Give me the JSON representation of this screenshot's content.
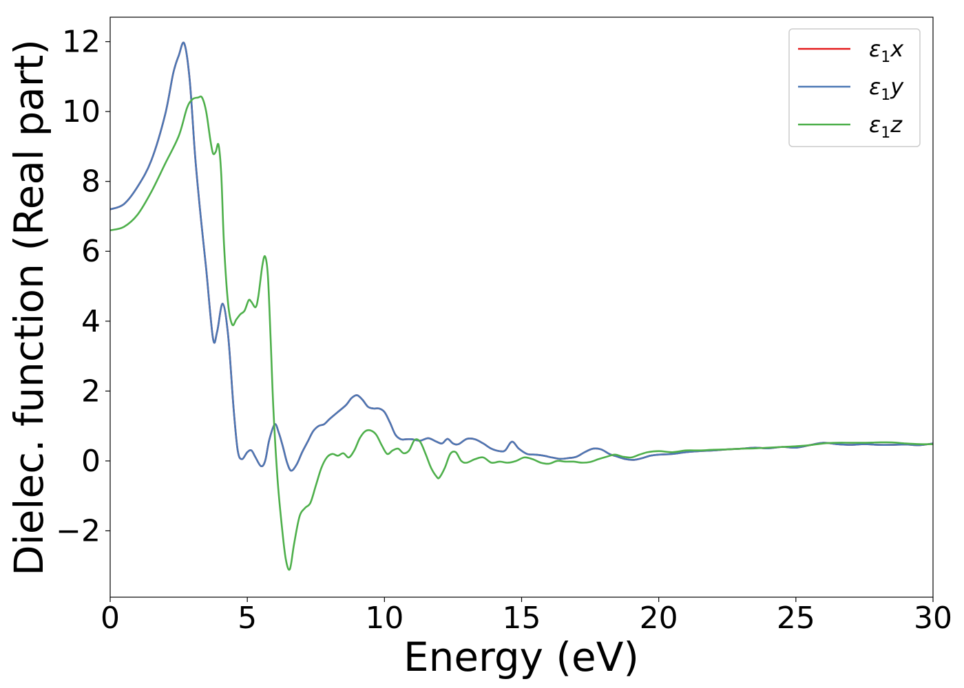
{
  "chart_data": {
    "type": "line",
    "xlabel": "Energy (eV)",
    "ylabel": "Dielec. function (Real part)",
    "xlim": [
      0,
      30
    ],
    "ylim": [
      -3.9,
      12.7
    ],
    "xticks": [
      0,
      5,
      10,
      15,
      20,
      25,
      30
    ],
    "xtick_labels": [
      "0",
      "5",
      "10",
      "15",
      "20",
      "25",
      "30"
    ],
    "yticks": [
      -2,
      0,
      2,
      4,
      6,
      8,
      10,
      12
    ],
    "ytick_labels": [
      "−2",
      "0",
      "2",
      "4",
      "6",
      "8",
      "10",
      "12"
    ],
    "grid": false,
    "legend_position": "top-right",
    "series": [
      {
        "name": "ε₁x",
        "legend_base": "ε",
        "legend_sub": "1",
        "legend_var": "x",
        "color": "#e41a1c",
        "x": [
          0,
          0.5,
          1.0,
          1.5,
          2.0,
          2.3,
          2.5,
          2.7,
          2.9,
          3.1,
          3.3,
          3.5,
          3.75,
          3.9,
          4.1,
          4.3,
          4.5,
          4.65,
          4.8,
          5.0,
          5.15,
          5.3,
          5.5,
          5.65,
          5.8,
          6.0,
          6.15,
          6.3,
          6.45,
          6.6,
          6.8,
          7.0,
          7.2,
          7.4,
          7.6,
          7.8,
          8.0,
          8.3,
          8.6,
          8.8,
          9.0,
          9.2,
          9.4,
          9.6,
          9.8,
          10.0,
          10.2,
          10.4,
          10.6,
          10.8,
          11.0,
          11.3,
          11.6,
          11.9,
          12.1,
          12.3,
          12.5,
          12.7,
          13.0,
          13.3,
          13.6,
          13.9,
          14.2,
          14.4,
          14.65,
          14.9,
          15.2,
          15.5,
          15.8,
          16.1,
          16.4,
          16.7,
          17.0,
          17.3,
          17.6,
          17.9,
          18.2,
          18.5,
          18.8,
          19.1,
          19.4,
          19.7,
          20.0,
          20.5,
          21.0,
          21.5,
          22.0,
          22.5,
          23.0,
          23.5,
          24.0,
          24.5,
          25.0,
          25.5,
          26.0,
          26.5,
          27.0,
          27.5,
          28.0,
          28.5,
          29.0,
          29.5,
          30.0
        ],
        "y": [
          7.2,
          7.35,
          7.85,
          8.6,
          9.9,
          11.1,
          11.6,
          11.95,
          10.9,
          8.7,
          7.0,
          5.5,
          3.5,
          3.7,
          4.5,
          3.6,
          1.5,
          0.3,
          0.05,
          0.25,
          0.3,
          0.1,
          -0.15,
          0.0,
          0.6,
          1.05,
          0.8,
          0.4,
          -0.05,
          -0.28,
          -0.1,
          0.25,
          0.55,
          0.85,
          1.0,
          1.05,
          1.2,
          1.4,
          1.6,
          1.8,
          1.88,
          1.75,
          1.55,
          1.5,
          1.5,
          1.4,
          1.1,
          0.75,
          0.62,
          0.62,
          0.62,
          0.58,
          0.65,
          0.55,
          0.5,
          0.63,
          0.5,
          0.48,
          0.63,
          0.62,
          0.5,
          0.35,
          0.28,
          0.3,
          0.55,
          0.35,
          0.2,
          0.18,
          0.15,
          0.1,
          0.06,
          0.08,
          0.12,
          0.25,
          0.35,
          0.33,
          0.2,
          0.12,
          0.05,
          0.03,
          0.08,
          0.15,
          0.18,
          0.2,
          0.25,
          0.28,
          0.3,
          0.33,
          0.35,
          0.38,
          0.36,
          0.4,
          0.38,
          0.45,
          0.52,
          0.48,
          0.46,
          0.48,
          0.46,
          0.46,
          0.47,
          0.45,
          0.5
        ]
      },
      {
        "name": "ε₁y",
        "legend_base": "ε",
        "legend_sub": "1",
        "legend_var": "y",
        "color": "#4a77b4",
        "x": [
          0,
          0.5,
          1.0,
          1.5,
          2.0,
          2.3,
          2.5,
          2.7,
          2.9,
          3.1,
          3.3,
          3.5,
          3.75,
          3.9,
          4.1,
          4.3,
          4.5,
          4.65,
          4.8,
          5.0,
          5.15,
          5.3,
          5.5,
          5.65,
          5.8,
          6.0,
          6.15,
          6.3,
          6.45,
          6.6,
          6.8,
          7.0,
          7.2,
          7.4,
          7.6,
          7.8,
          8.0,
          8.3,
          8.6,
          8.8,
          9.0,
          9.2,
          9.4,
          9.6,
          9.8,
          10.0,
          10.2,
          10.4,
          10.6,
          10.8,
          11.0,
          11.3,
          11.6,
          11.9,
          12.1,
          12.3,
          12.5,
          12.7,
          13.0,
          13.3,
          13.6,
          13.9,
          14.2,
          14.4,
          14.65,
          14.9,
          15.2,
          15.5,
          15.8,
          16.1,
          16.4,
          16.7,
          17.0,
          17.3,
          17.6,
          17.9,
          18.2,
          18.5,
          18.8,
          19.1,
          19.4,
          19.7,
          20.0,
          20.5,
          21.0,
          21.5,
          22.0,
          22.5,
          23.0,
          23.5,
          24.0,
          24.5,
          25.0,
          25.5,
          26.0,
          26.5,
          27.0,
          27.5,
          28.0,
          28.5,
          29.0,
          29.5,
          30.0
        ],
        "y": [
          7.2,
          7.35,
          7.85,
          8.6,
          9.9,
          11.1,
          11.6,
          11.95,
          10.9,
          8.7,
          7.0,
          5.5,
          3.5,
          3.7,
          4.5,
          3.6,
          1.5,
          0.3,
          0.05,
          0.25,
          0.3,
          0.1,
          -0.15,
          0.0,
          0.6,
          1.05,
          0.8,
          0.4,
          -0.05,
          -0.28,
          -0.1,
          0.25,
          0.55,
          0.85,
          1.0,
          1.05,
          1.2,
          1.4,
          1.6,
          1.8,
          1.88,
          1.75,
          1.55,
          1.5,
          1.5,
          1.4,
          1.1,
          0.75,
          0.62,
          0.62,
          0.62,
          0.58,
          0.65,
          0.55,
          0.5,
          0.63,
          0.5,
          0.48,
          0.63,
          0.62,
          0.5,
          0.35,
          0.28,
          0.3,
          0.55,
          0.35,
          0.2,
          0.18,
          0.15,
          0.1,
          0.06,
          0.08,
          0.12,
          0.25,
          0.35,
          0.33,
          0.2,
          0.12,
          0.05,
          0.03,
          0.08,
          0.15,
          0.18,
          0.2,
          0.25,
          0.28,
          0.3,
          0.33,
          0.35,
          0.38,
          0.36,
          0.4,
          0.38,
          0.45,
          0.52,
          0.48,
          0.46,
          0.48,
          0.46,
          0.46,
          0.47,
          0.45,
          0.5
        ]
      },
      {
        "name": "ε₁z",
        "legend_base": "ε",
        "legend_sub": "1",
        "legend_var": "z",
        "color": "#4daf4a",
        "x": [
          0,
          0.5,
          1.0,
          1.5,
          2.0,
          2.5,
          2.8,
          3.0,
          3.2,
          3.35,
          3.5,
          3.65,
          3.75,
          3.85,
          3.95,
          4.05,
          4.15,
          4.3,
          4.45,
          4.6,
          4.75,
          4.9,
          5.05,
          5.15,
          5.3,
          5.4,
          5.55,
          5.65,
          5.75,
          5.85,
          5.95,
          6.1,
          6.25,
          6.4,
          6.55,
          6.7,
          6.9,
          7.1,
          7.3,
          7.5,
          7.7,
          7.9,
          8.1,
          8.3,
          8.5,
          8.7,
          8.9,
          9.1,
          9.3,
          9.5,
          9.7,
          9.9,
          10.1,
          10.3,
          10.5,
          10.7,
          10.9,
          11.1,
          11.3,
          11.5,
          11.7,
          11.9,
          12.0,
          12.2,
          12.4,
          12.6,
          12.8,
          13.0,
          13.3,
          13.6,
          13.9,
          14.2,
          14.5,
          14.8,
          15.1,
          15.4,
          15.7,
          16.0,
          16.3,
          16.6,
          16.9,
          17.2,
          17.5,
          17.8,
          18.1,
          18.4,
          18.7,
          19.0,
          19.3,
          19.6,
          20.0,
          20.5,
          21.0,
          21.5,
          22.0,
          22.5,
          23.0,
          23.5,
          24.0,
          24.5,
          25.0,
          25.5,
          26.0,
          26.5,
          27.0,
          27.5,
          28.0,
          28.5,
          29.0,
          29.5,
          30.0
        ],
        "y": [
          6.6,
          6.7,
          7.05,
          7.7,
          8.5,
          9.3,
          10.1,
          10.35,
          10.4,
          10.4,
          10.0,
          9.2,
          8.8,
          8.85,
          9.05,
          8.2,
          6.2,
          4.5,
          3.9,
          4.05,
          4.2,
          4.3,
          4.6,
          4.55,
          4.4,
          4.7,
          5.6,
          5.85,
          5.3,
          3.5,
          1.5,
          -0.5,
          -1.8,
          -2.8,
          -3.1,
          -2.4,
          -1.6,
          -1.35,
          -1.2,
          -0.7,
          -0.2,
          0.1,
          0.2,
          0.15,
          0.22,
          0.1,
          0.3,
          0.65,
          0.85,
          0.87,
          0.75,
          0.45,
          0.2,
          0.3,
          0.35,
          0.22,
          0.3,
          0.6,
          0.55,
          0.2,
          -0.2,
          -0.45,
          -0.48,
          -0.2,
          0.2,
          0.25,
          0.0,
          -0.05,
          0.05,
          0.1,
          -0.05,
          -0.02,
          -0.05,
          0.0,
          0.1,
          0.05,
          -0.05,
          -0.08,
          0.0,
          -0.02,
          -0.02,
          -0.05,
          -0.03,
          0.05,
          0.12,
          0.18,
          0.12,
          0.1,
          0.18,
          0.25,
          0.28,
          0.25,
          0.3,
          0.3,
          0.32,
          0.33,
          0.35,
          0.36,
          0.38,
          0.4,
          0.42,
          0.45,
          0.5,
          0.52,
          0.52,
          0.52,
          0.53,
          0.53,
          0.5,
          0.48,
          0.48
        ]
      }
    ]
  }
}
